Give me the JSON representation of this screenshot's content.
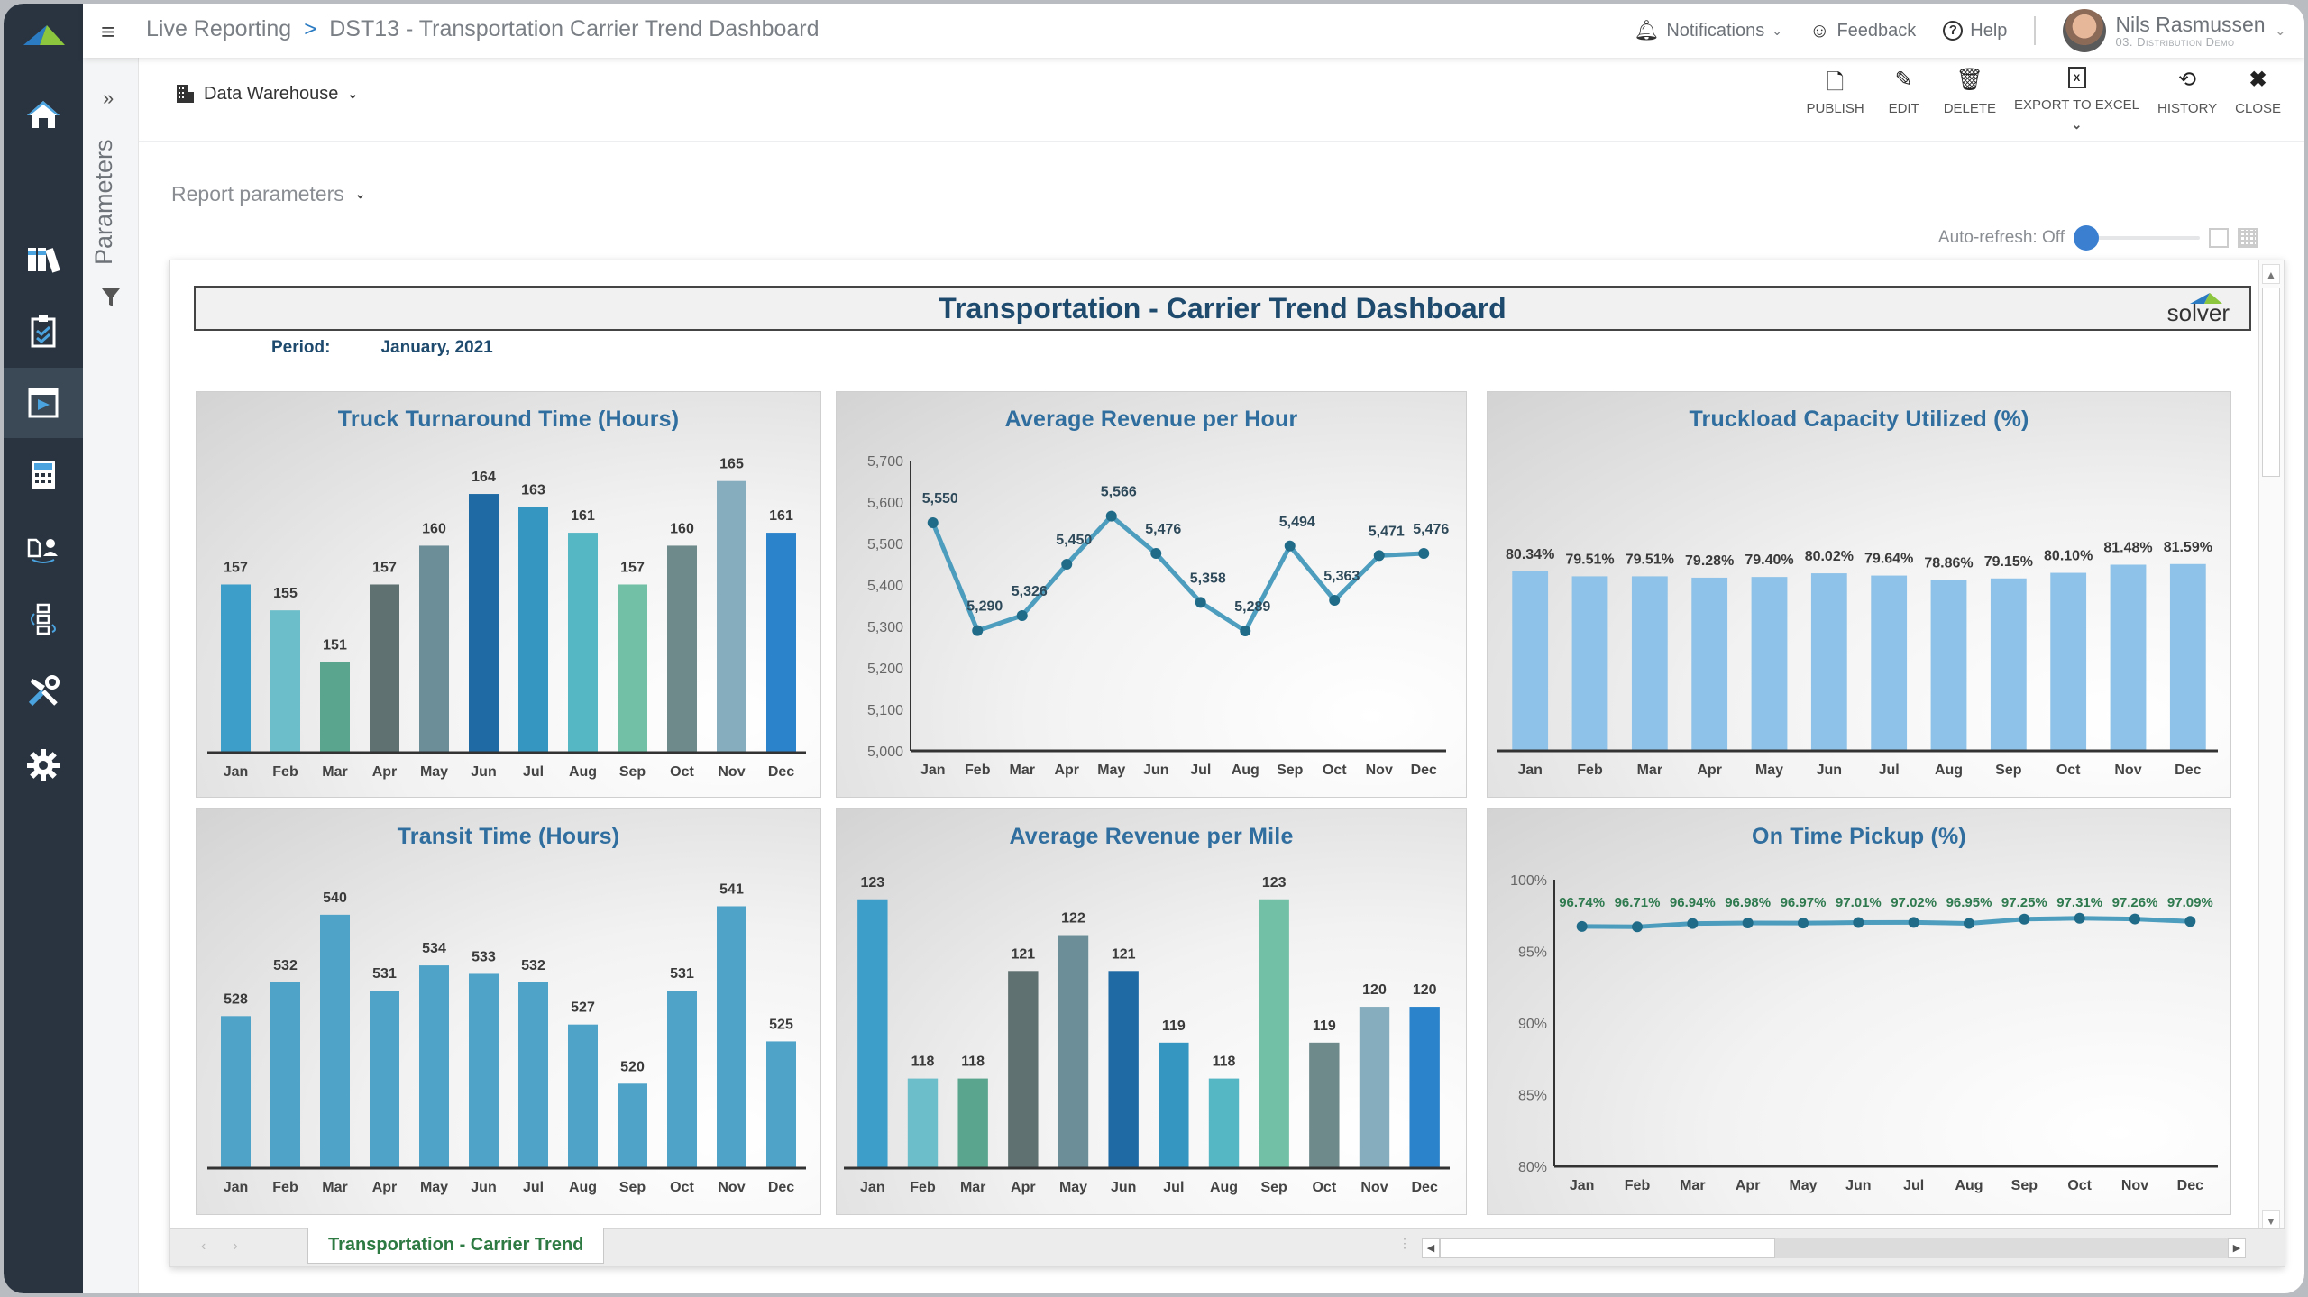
{
  "app": {
    "breadcrumb": [
      "Live Reporting",
      "DST13 - Transportation Carrier Trend Dashboard"
    ],
    "breadcrumb_sep": ">",
    "menu_icon": "hamburger-icon"
  },
  "nav": {
    "items": [
      {
        "name": "home",
        "icon": "home-icon"
      },
      {
        "name": "library",
        "icon": "binders-icon"
      },
      {
        "name": "tasks",
        "icon": "clipboard-check-icon"
      },
      {
        "name": "reports",
        "icon": "report-play-icon",
        "active": true
      },
      {
        "name": "budgeting",
        "icon": "calculator-icon"
      },
      {
        "name": "users",
        "icon": "document-user-icon"
      },
      {
        "name": "processes",
        "icon": "workflow-icon"
      },
      {
        "name": "tools",
        "icon": "tools-icon"
      },
      {
        "name": "settings",
        "icon": "gear-icon"
      }
    ]
  },
  "topbar": {
    "notifications": "Notifications",
    "feedback": "Feedback",
    "help": "Help",
    "user_name": "Nils Rasmussen",
    "user_org": "03. Distribution Demo"
  },
  "params": {
    "expand": "»",
    "label": "Parameters"
  },
  "toolbar": {
    "datasource": "Data Warehouse",
    "report_parameters": "Report parameters",
    "actions": [
      {
        "label": "PUBLISH",
        "icon": "publish-icon"
      },
      {
        "label": "EDIT",
        "icon": "pencil-icon"
      },
      {
        "label": "DELETE",
        "icon": "trash-icon"
      },
      {
        "label": "EXPORT TO EXCEL",
        "icon": "excel-icon"
      },
      {
        "label": "HISTORY",
        "icon": "history-icon"
      },
      {
        "label": "CLOSE",
        "icon": "close-icon"
      }
    ],
    "auto_refresh": "Auto-refresh: Off",
    "auto_refresh_on": false
  },
  "report": {
    "title": "Transportation - Carrier Trend Dashboard",
    "logo_text": "solver",
    "period_label": "Period:",
    "period_value": "January, 2021",
    "sheet_tab": "Transportation - Carrier Trend"
  },
  "colors": {
    "title": "#1e4a6e",
    "chart_title": "#2f6e9e",
    "line": "#3a93b8",
    "marker": "#1f6b88",
    "pickup_label": "#2f7a4f",
    "capacity_bar": "#8ec2e8",
    "transit_bar": "#4fa3c8",
    "palette": [
      "#3d9ec9",
      "#6cbfca",
      "#5aa58d",
      "#5f7170",
      "#6b8e98",
      "#1f6aa5",
      "#3596c2",
      "#55b6c4",
      "#72c0a6",
      "#6f8a8b",
      "#86adbd",
      "#2a83cb"
    ]
  },
  "chart_data": [
    {
      "id": "turnaround",
      "type": "bar",
      "title": "Truck Turnaround Time (Hours)",
      "categories": [
        "Jan",
        "Feb",
        "Mar",
        "Apr",
        "May",
        "Jun",
        "Jul",
        "Aug",
        "Sep",
        "Oct",
        "Nov",
        "Dec"
      ],
      "values": [
        157,
        155,
        151,
        157,
        160,
        164,
        163,
        161,
        157,
        160,
        165,
        161
      ],
      "labels": [
        "157",
        "155",
        "151",
        "157",
        "160",
        "164",
        "163",
        "161",
        "157",
        "160",
        "165",
        "161"
      ],
      "ylim": [
        144,
        167
      ],
      "multicolor": true,
      "xlabel": "",
      "ylabel": ""
    },
    {
      "id": "rev_hour",
      "type": "line",
      "title": "Average Revenue per Hour",
      "categories": [
        "Jan",
        "Feb",
        "Mar",
        "Apr",
        "May",
        "Jun",
        "Jul",
        "Aug",
        "Sep",
        "Oct",
        "Nov",
        "Dec"
      ],
      "values": [
        5550,
        5290,
        5326,
        5450,
        5566,
        5476,
        5358,
        5289,
        5494,
        5363,
        5471,
        5476
      ],
      "labels": [
        "5,550",
        "5,290",
        "5,326",
        "5,450",
        "5,566",
        "5,476",
        "5,358",
        "5,289",
        "5,494",
        "5,363",
        "5,471",
        "5,476"
      ],
      "ylim": [
        5000,
        5700
      ],
      "yticks": [
        "5,000",
        "5,100",
        "5,200",
        "5,300",
        "5,400",
        "5,500",
        "5,600",
        "5,700"
      ],
      "ytick_values": [
        5000,
        5100,
        5200,
        5300,
        5400,
        5500,
        5600,
        5700
      ],
      "xlabel": "",
      "ylabel": ""
    },
    {
      "id": "capacity",
      "type": "bar",
      "title": "Truckload Capacity Utilized (%)",
      "categories": [
        "Jan",
        "Feb",
        "Mar",
        "Apr",
        "May",
        "Jun",
        "Jul",
        "Aug",
        "Sep",
        "Oct",
        "Nov",
        "Dec"
      ],
      "values": [
        80.34,
        79.51,
        79.51,
        79.28,
        79.4,
        80.02,
        79.64,
        78.86,
        79.15,
        80.1,
        81.48,
        81.59
      ],
      "labels": [
        "80.34%",
        "79.51%",
        "79.51%",
        "79.28%",
        "79.40%",
        "80.02%",
        "79.64%",
        "78.86%",
        "79.15%",
        "80.10%",
        "81.48%",
        "81.59%"
      ],
      "ylim": [
        50,
        100
      ],
      "multicolor": false,
      "xlabel": "",
      "ylabel": ""
    },
    {
      "id": "transit",
      "type": "bar",
      "title": "Transit Time (Hours)",
      "categories": [
        "Jan",
        "Feb",
        "Mar",
        "Apr",
        "May",
        "Jun",
        "Jul",
        "Aug",
        "Sep",
        "Oct",
        "Nov",
        "Dec"
      ],
      "values": [
        528,
        532,
        540,
        531,
        534,
        533,
        532,
        527,
        520,
        531,
        541,
        525
      ],
      "labels": [
        "528",
        "532",
        "540",
        "531",
        "534",
        "533",
        "532",
        "527",
        "520",
        "531",
        "541",
        "525"
      ],
      "ylim": [
        510,
        545
      ],
      "multicolor": false,
      "xlabel": "",
      "ylabel": ""
    },
    {
      "id": "rev_mile",
      "type": "bar",
      "title": "Average Revenue per Mile",
      "categories": [
        "Jan",
        "Feb",
        "Mar",
        "Apr",
        "May",
        "Jun",
        "Jul",
        "Aug",
        "Sep",
        "Oct",
        "Nov",
        "Dec"
      ],
      "values": [
        123,
        118,
        118,
        121,
        122,
        121,
        119,
        118,
        123,
        119,
        120,
        120
      ],
      "labels": [
        "123",
        "118",
        "118",
        "121",
        "122",
        "121",
        "119",
        "118",
        "123",
        "119",
        "120",
        "120"
      ],
      "ylim": [
        115.5,
        124
      ],
      "multicolor": true,
      "xlabel": "",
      "ylabel": ""
    },
    {
      "id": "pickup",
      "type": "line",
      "title": "On Time Pickup (%)",
      "categories": [
        "Jan",
        "Feb",
        "Mar",
        "Apr",
        "May",
        "Jun",
        "Jul",
        "Aug",
        "Sep",
        "Oct",
        "Nov",
        "Dec"
      ],
      "values": [
        96.74,
        96.71,
        96.94,
        96.98,
        96.97,
        97.01,
        97.02,
        96.95,
        97.25,
        97.31,
        97.26,
        97.09
      ],
      "labels": [
        "96.74%",
        "96.71%",
        "96.94%",
        "96.98%",
        "96.97%",
        "97.01%",
        "97.02%",
        "96.95%",
        "97.25%",
        "97.31%",
        "97.26%",
        "97.09%"
      ],
      "ylim": [
        80,
        100
      ],
      "yticks": [
        "80%",
        "85%",
        "90%",
        "95%",
        "100%"
      ],
      "ytick_values": [
        80,
        85,
        90,
        95,
        100
      ],
      "xlabel": "",
      "ylabel": ""
    }
  ]
}
